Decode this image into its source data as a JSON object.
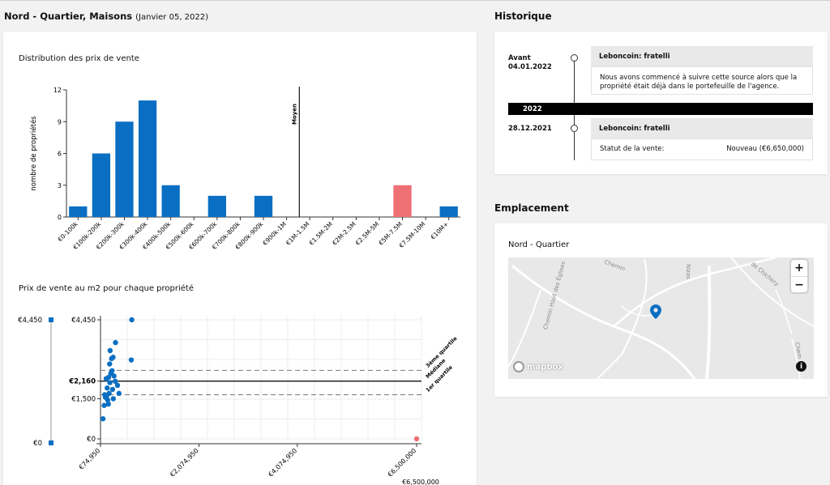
{
  "header": {
    "title": "Nord - Quartier, Maisons",
    "date": "(Janvier 05, 2022)"
  },
  "price_distribution": {
    "title": "Distribution des prix de vente",
    "chart_data": {
      "type": "bar",
      "ylabel": "nombre de propriétés",
      "ylim": [
        0,
        12
      ],
      "yticks": [
        "12",
        "9",
        "6",
        "3",
        "0"
      ],
      "categories": [
        "€0-100k",
        "€100k-200k",
        "€200k-300k",
        "€300k-400k",
        "€400k-500k",
        "€500k-600k",
        "€600k-700k",
        "€700k-800k",
        "€800k-900k",
        "€900k-1M",
        "€1M-1.5M",
        "€1.5M-2M",
        "€2M-2.5M",
        "€2.5M-5M",
        "€5M-7.5M",
        "€7.5M-10M",
        "€10M+"
      ],
      "values": [
        1,
        6,
        9,
        11,
        3,
        0,
        2,
        0,
        2,
        0,
        0,
        0,
        0,
        0,
        3,
        0,
        1
      ],
      "highlight_index": 14,
      "bar_color": "#0a6fc2",
      "highlight_color": "#ee7074",
      "mean_label": "Moyen",
      "mean_after_category_index": 10
    }
  },
  "price_per_m2": {
    "title": "Prix de vente au m2 pour chaque propriété",
    "chart_data": {
      "type": "scatter",
      "range_labels": [
        "€4,450",
        "€0"
      ],
      "yticks": [
        "€4,450",
        "€2,160",
        "€1,500",
        "€0"
      ],
      "xticks": [
        "€74,950",
        "€2,074,950",
        "€4,074,950",
        "€6,500,000"
      ],
      "xtick_values": [
        74950,
        2074950,
        4074950,
        6500000
      ],
      "xlim": [
        74950,
        6500000
      ],
      "ylim": [
        0,
        4450
      ],
      "lines": [
        {
          "label": "3ème quartile",
          "value": 2560,
          "style": "dashed"
        },
        {
          "label": "Médiane",
          "value": 2160,
          "style": "solid"
        },
        {
          "label": "1er quartile",
          "value": 1650,
          "style": "dashed"
        }
      ],
      "cut_label": "€6,500,000",
      "point_color": "#0a6fc2",
      "highlight_color": "#ee7074",
      "points": [
        {
          "x": 125000,
          "y": 750
        },
        {
          "x": 150000,
          "y": 1250
        },
        {
          "x": 160000,
          "y": 1650
        },
        {
          "x": 175000,
          "y": 1550
        },
        {
          "x": 190000,
          "y": 2250
        },
        {
          "x": 200000,
          "y": 1600
        },
        {
          "x": 210000,
          "y": 1900
        },
        {
          "x": 220000,
          "y": 1450
        },
        {
          "x": 235000,
          "y": 1300
        },
        {
          "x": 240000,
          "y": 2300
        },
        {
          "x": 250000,
          "y": 1700
        },
        {
          "x": 260000,
          "y": 2800
        },
        {
          "x": 265000,
          "y": 2100
        },
        {
          "x": 270000,
          "y": 3300
        },
        {
          "x": 285000,
          "y": 2450
        },
        {
          "x": 300000,
          "y": 3000
        },
        {
          "x": 310000,
          "y": 2550
        },
        {
          "x": 320000,
          "y": 1850
        },
        {
          "x": 330000,
          "y": 3050
        },
        {
          "x": 335000,
          "y": 1500
        },
        {
          "x": 350000,
          "y": 2350
        },
        {
          "x": 375000,
          "y": 2150
        },
        {
          "x": 380000,
          "y": 3600
        },
        {
          "x": 420000,
          "y": 2000
        },
        {
          "x": 450000,
          "y": 1700
        },
        {
          "x": 700000,
          "y": 2950
        },
        {
          "x": 710000,
          "y": 4450
        },
        {
          "x": 6500000,
          "y": 0,
          "highlight": true
        }
      ]
    }
  },
  "history": {
    "title": "Historique",
    "entries": [
      {
        "date_line1": "Avant",
        "date_line2": "04.01.2022",
        "source": "Leboncoin: fratelli",
        "text": "Nous avons commencé à suivre cette source alors que la propriété était déjà dans le portefeuille de l'agence."
      },
      {
        "date_line1": "28.12.2021",
        "source": "Leboncoin: fratelli",
        "status_label": "Statut de la vente:",
        "status_value": "Nouveau (€6,650,000)"
      }
    ],
    "year": "2022"
  },
  "location": {
    "title": "Emplacement",
    "name": "Nord - Quartier",
    "zoom_in": "+",
    "zoom_out": "−",
    "mapbox_label": "mapbox",
    "info_label": "i",
    "streets": [
      "Chemin",
      "Chemin Haut des Églises",
      "Nizas",
      "de Chichery",
      "Chem"
    ]
  }
}
